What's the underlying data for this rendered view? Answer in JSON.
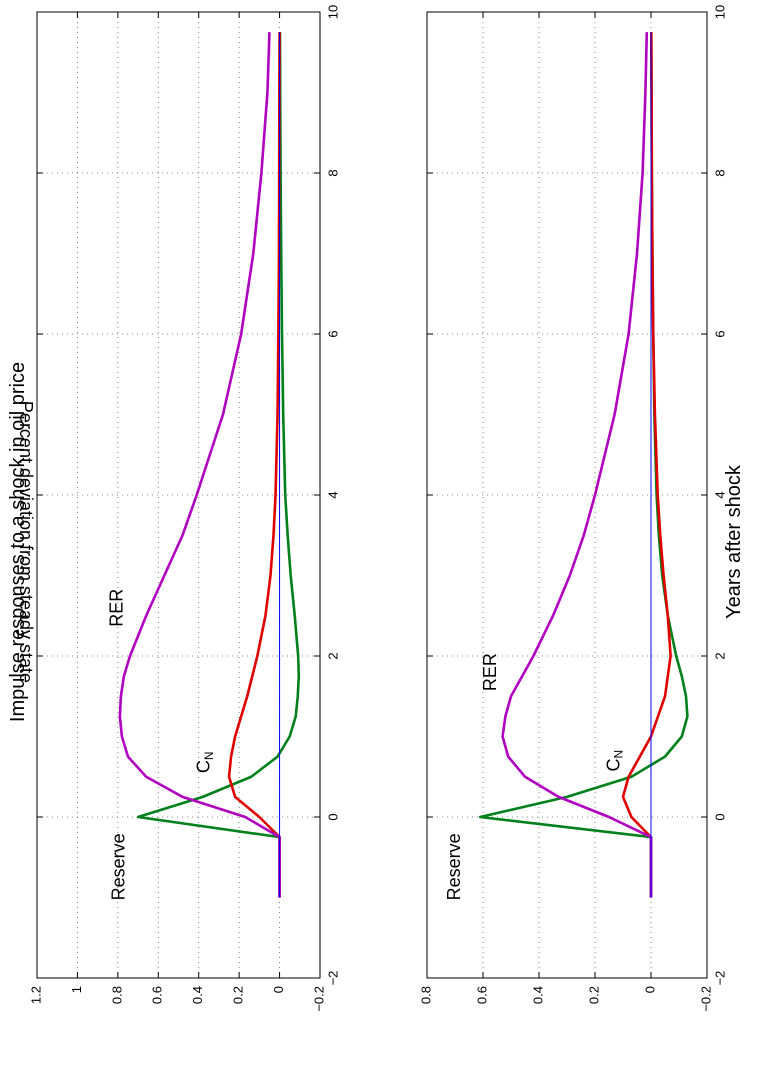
{
  "page": {
    "title": "Impulse responses to a shock in oil price",
    "xlabel": "Years after shock",
    "ylabel": "Percent deviation from steady state"
  },
  "chart_data": [
    {
      "type": "line",
      "xlim": [
        -2,
        10
      ],
      "ylim": [
        -0.2,
        1.2
      ],
      "xticks": [
        -2,
        0,
        2,
        4,
        6,
        8,
        10
      ],
      "yticks": [
        -0.2,
        0,
        0.2,
        0.4,
        0.6,
        0.8,
        1,
        1.2
      ],
      "x_tick_labels": [
        "−2",
        "0",
        "2",
        "4",
        "6",
        "8",
        "10"
      ],
      "y_tick_labels": [
        "−0.2",
        "0",
        "0.2",
        "0.4",
        "0.6",
        "0.8",
        "1",
        "1.2"
      ],
      "grid": true,
      "series": [
        {
          "name": "Reserve",
          "color": "#00801a",
          "x": [
            -1,
            -0.25,
            0,
            0.25,
            0.5,
            0.75,
            1,
            1.25,
            1.5,
            1.75,
            2,
            2.5,
            3,
            3.5,
            4,
            5,
            6,
            7,
            8,
            9,
            9.75
          ],
          "y": [
            0,
            0,
            0.7,
            0.38,
            0.14,
            0.01,
            -0.05,
            -0.08,
            -0.09,
            -0.095,
            -0.092,
            -0.075,
            -0.055,
            -0.04,
            -0.028,
            -0.018,
            -0.012,
            -0.008,
            -0.005,
            -0.003,
            -0.002
          ]
        },
        {
          "name": "C_N",
          "color": "#e00000",
          "x": [
            -1,
            -0.25,
            0,
            0.25,
            0.5,
            0.75,
            1,
            1.5,
            2,
            2.5,
            3,
            3.5,
            4,
            5,
            6,
            7,
            8,
            9,
            9.75
          ],
          "y": [
            0,
            0,
            0.1,
            0.22,
            0.25,
            0.24,
            0.22,
            0.16,
            0.11,
            0.07,
            0.045,
            0.03,
            0.02,
            0.01,
            0.006,
            0.003,
            0.002,
            0.001,
            0
          ]
        },
        {
          "name": "RER",
          "color": "#b000c0",
          "x": [
            -1,
            -0.25,
            0,
            0.25,
            0.5,
            0.75,
            1,
            1.25,
            1.5,
            1.75,
            2,
            2.5,
            3,
            3.5,
            4,
            5,
            6,
            7,
            8,
            9,
            9.75
          ],
          "y": [
            0,
            0,
            0.17,
            0.48,
            0.66,
            0.75,
            0.78,
            0.79,
            0.785,
            0.77,
            0.74,
            0.66,
            0.57,
            0.48,
            0.41,
            0.28,
            0.19,
            0.13,
            0.09,
            0.06,
            0.05
          ]
        },
        {
          "name": "",
          "color": "#0000ff",
          "dashed": false,
          "thin": true,
          "x": [
            -1,
            9.75
          ],
          "y": [
            0,
            0
          ]
        }
      ],
      "annotations": [
        {
          "text": "Reserve",
          "x": -0.62,
          "y": 0.79
        },
        {
          "text": "RER",
          "x": 2.6,
          "y": 0.8
        },
        {
          "text": "C",
          "sub": "N",
          "x": 0.68,
          "y": 0.37
        }
      ]
    },
    {
      "type": "line",
      "xlim": [
        -2,
        10
      ],
      "ylim": [
        -0.2,
        0.8
      ],
      "xticks": [
        -2,
        0,
        2,
        4,
        6,
        8,
        10
      ],
      "yticks": [
        -0.2,
        0,
        0.2,
        0.4,
        0.6,
        0.8
      ],
      "x_tick_labels": [
        "−2",
        "0",
        "2",
        "4",
        "6",
        "8",
        "10"
      ],
      "y_tick_labels": [
        "−0.2",
        "0",
        "0.2",
        "0.4",
        "0.6",
        "0.8"
      ],
      "grid": true,
      "series": [
        {
          "name": "Reserve",
          "color": "#00801a",
          "x": [
            -1,
            -0.25,
            0,
            0.25,
            0.5,
            0.75,
            1,
            1.25,
            1.5,
            1.75,
            2,
            2.5,
            3,
            3.5,
            4,
            5,
            6,
            7,
            8,
            9,
            9.75
          ],
          "y": [
            0,
            0,
            0.61,
            0.3,
            0.07,
            -0.05,
            -0.11,
            -0.13,
            -0.125,
            -0.11,
            -0.09,
            -0.06,
            -0.04,
            -0.028,
            -0.02,
            -0.012,
            -0.008,
            -0.005,
            -0.003,
            -0.002,
            -0.001
          ]
        },
        {
          "name": "C_N",
          "color": "#e00000",
          "x": [
            -1,
            -0.25,
            0,
            0.25,
            0.5,
            0.75,
            1,
            1.5,
            2,
            2.5,
            3,
            3.5,
            4,
            5,
            6,
            7,
            8,
            9,
            9.75
          ],
          "y": [
            0,
            0,
            0.07,
            0.1,
            0.08,
            0.04,
            0,
            -0.05,
            -0.07,
            -0.06,
            -0.045,
            -0.033,
            -0.024,
            -0.014,
            -0.008,
            -0.005,
            -0.003,
            -0.002,
            -0.001
          ]
        },
        {
          "name": "RER",
          "color": "#b000c0",
          "x": [
            -1,
            -0.25,
            0,
            0.25,
            0.5,
            0.75,
            1,
            1.25,
            1.5,
            1.75,
            2,
            2.5,
            3,
            3.5,
            4,
            5,
            6,
            7,
            8,
            9,
            9.75
          ],
          "y": [
            0,
            0,
            0.15,
            0.33,
            0.45,
            0.51,
            0.53,
            0.52,
            0.5,
            0.46,
            0.42,
            0.35,
            0.29,
            0.24,
            0.2,
            0.13,
            0.08,
            0.05,
            0.03,
            0.02,
            0.015
          ]
        },
        {
          "name": "",
          "color": "#0000ff",
          "thin": true,
          "x": [
            -1,
            9.75
          ],
          "y": [
            0,
            0
          ]
        }
      ],
      "annotations": [
        {
          "text": "Reserve",
          "x": -0.62,
          "y": 0.7
        },
        {
          "text": "RER",
          "x": 1.8,
          "y": 0.57
        },
        {
          "text": "C",
          "sub": "N",
          "x": 0.7,
          "y": 0.13
        }
      ]
    }
  ]
}
